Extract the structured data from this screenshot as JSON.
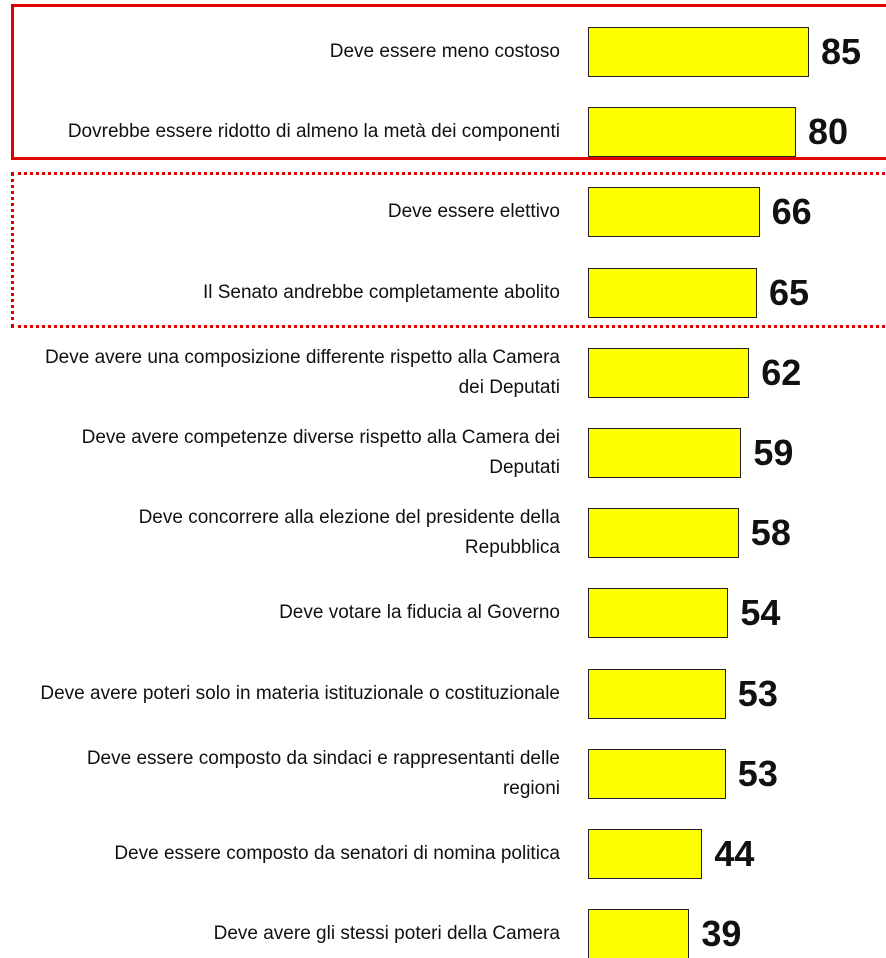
{
  "chart_data": {
    "type": "bar",
    "orientation": "horizontal",
    "color": "#ffff00",
    "categories": [
      "Deve essere meno costoso",
      "Dovrebbe essere ridotto di almeno la metà dei componenti",
      "Deve essere elettivo",
      "Il Senato andrebbe completamente abolito",
      "Deve avere una composizione differente rispetto alla Camera dei Deputati",
      "Deve avere competenze diverse rispetto alla Camera dei Deputati",
      "Deve concorrere alla elezione del presidente della Repubblica",
      "Deve votare la fiducia al Governo",
      "Deve avere poteri solo in materia istituzionale o costituzionale",
      "Deve essere composto da sindaci e rappresentanti delle regioni",
      "Deve essere composto da senatori di nomina politica",
      "Deve avere gli stessi poteri della Camera"
    ],
    "values": [
      85,
      80,
      66,
      65,
      62,
      59,
      58,
      54,
      53,
      53,
      44,
      39
    ]
  }
}
